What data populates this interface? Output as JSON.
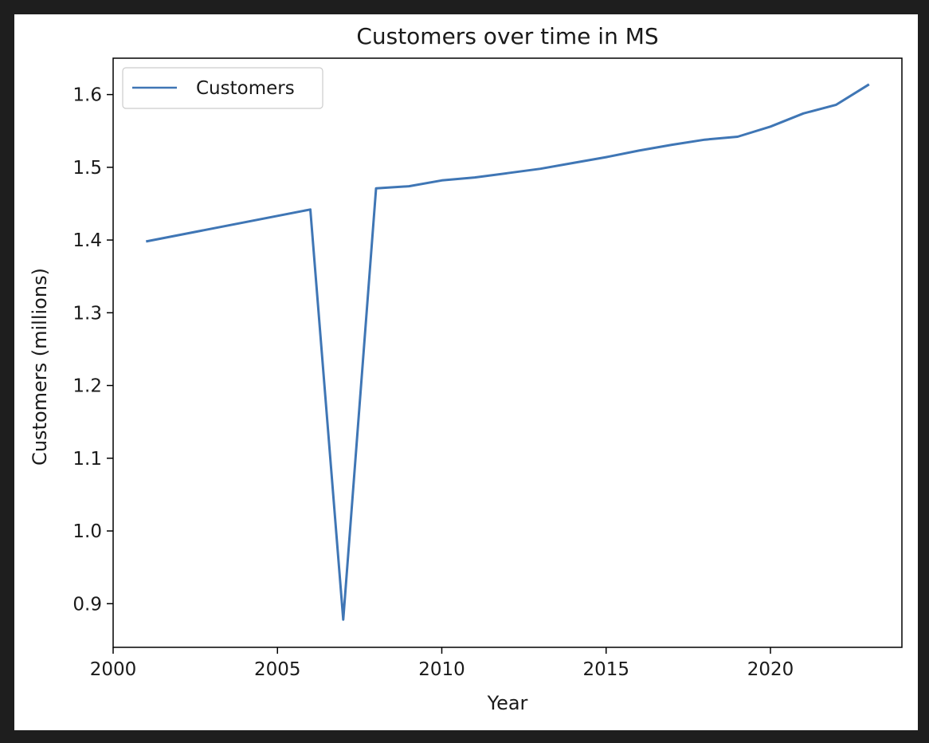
{
  "chart_data": {
    "type": "line",
    "title": "Customers over time in MS",
    "xlabel": "Year",
    "ylabel": "Customers (millions)",
    "xlim": [
      2000,
      2024
    ],
    "ylim": [
      0.84,
      1.65
    ],
    "xticks": [
      2000,
      2005,
      2010,
      2015,
      2020
    ],
    "yticks": [
      0.9,
      1.0,
      1.1,
      1.2,
      1.3,
      1.4,
      1.5,
      1.6
    ],
    "xtick_labels": [
      "2000",
      "2005",
      "2010",
      "2015",
      "2020"
    ],
    "ytick_labels": [
      "0.9",
      "1.0",
      "1.1",
      "1.2",
      "1.3",
      "1.4",
      "1.5",
      "1.6"
    ],
    "grid": false,
    "legend_position": "top-left",
    "series": [
      {
        "name": "Customers",
        "color": "#3f76b5",
        "x": [
          2001,
          2006,
          2007,
          2008,
          2009,
          2010,
          2011,
          2012,
          2013,
          2014,
          2015,
          2016,
          2017,
          2018,
          2019,
          2020,
          2021,
          2022,
          2023
        ],
        "y": [
          1.398,
          1.442,
          0.878,
          1.471,
          1.474,
          1.482,
          1.486,
          1.492,
          1.498,
          1.506,
          1.514,
          1.523,
          1.531,
          1.538,
          1.542,
          1.556,
          1.574,
          1.586,
          1.614
        ]
      }
    ]
  }
}
